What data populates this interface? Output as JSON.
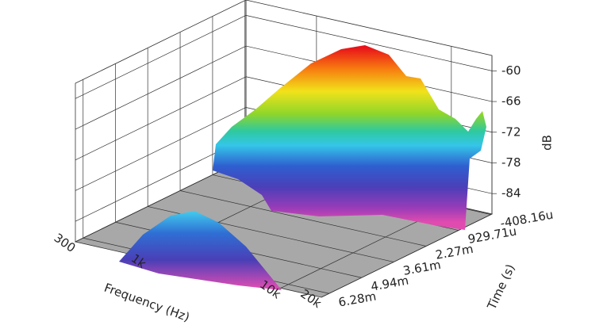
{
  "chart_data": {
    "type": "waterfall",
    "x_label": "Frequency (Hz)",
    "y_label": "Time (s)",
    "z_label": "dB",
    "x_log": true,
    "xlim": [
      300,
      20000
    ],
    "xticks": [
      300,
      {
        "value": 1000,
        "label": "1k"
      },
      {
        "value": 10000,
        "label": "10k"
      },
      {
        "value": 20000,
        "label": "20k"
      }
    ],
    "ylim": [
      -0.00045,
      0.0066
    ],
    "yticks": [
      {
        "value": -0.00040816,
        "label": "-408.16u"
      },
      {
        "value": 0.00092971,
        "label": "929.71u"
      },
      {
        "value": 0.00227,
        "label": "2.27m"
      },
      {
        "value": 0.00361,
        "label": "3.61m"
      },
      {
        "value": 0.00494,
        "label": "4.94m"
      },
      {
        "value": 0.00628,
        "label": "6.28m"
      }
    ],
    "zlim": [
      -88,
      -57
    ],
    "zticks": [
      -60,
      -66,
      -72,
      -78,
      -84
    ],
    "grid": true
  }
}
